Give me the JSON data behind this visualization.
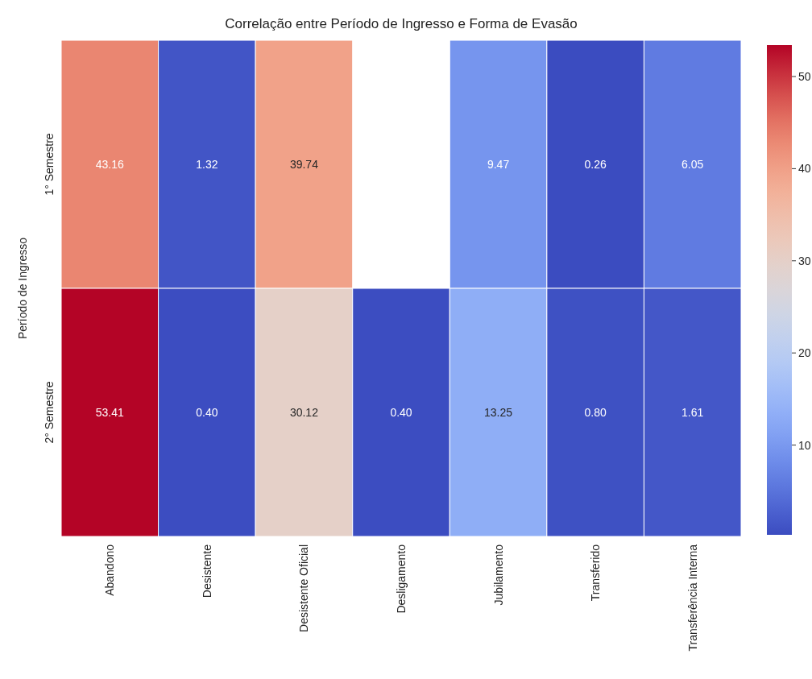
{
  "chart_data": {
    "type": "heatmap",
    "title": "Correlação entre Período de Ingresso e Forma de Evasão",
    "ylabel": "Período de Ingresso",
    "categories": [
      "Abandono",
      "Desistente",
      "Desistente Oficial",
      "Desligamento",
      "Jubilamento",
      "Transferido",
      "Transferência Interna"
    ],
    "y_categories": [
      "1° Semestre",
      "2° Semestre"
    ],
    "cells": [
      [
        43.16,
        1.32,
        39.74,
        null,
        9.47,
        0.26,
        6.05
      ],
      [
        53.41,
        0.4,
        30.12,
        0.4,
        13.25,
        0.8,
        1.61
      ]
    ],
    "cell_labels": [
      [
        "43.16",
        "1.32",
        "39.74",
        null,
        "9.47",
        "0.26",
        "6.05"
      ],
      [
        "53.41",
        "0.40",
        "30.12",
        "0.40",
        "13.25",
        "0.80",
        "1.61"
      ]
    ],
    "clim": [
      0.26,
      53.41
    ],
    "cticks": [
      10,
      20,
      30,
      40,
      50
    ]
  }
}
